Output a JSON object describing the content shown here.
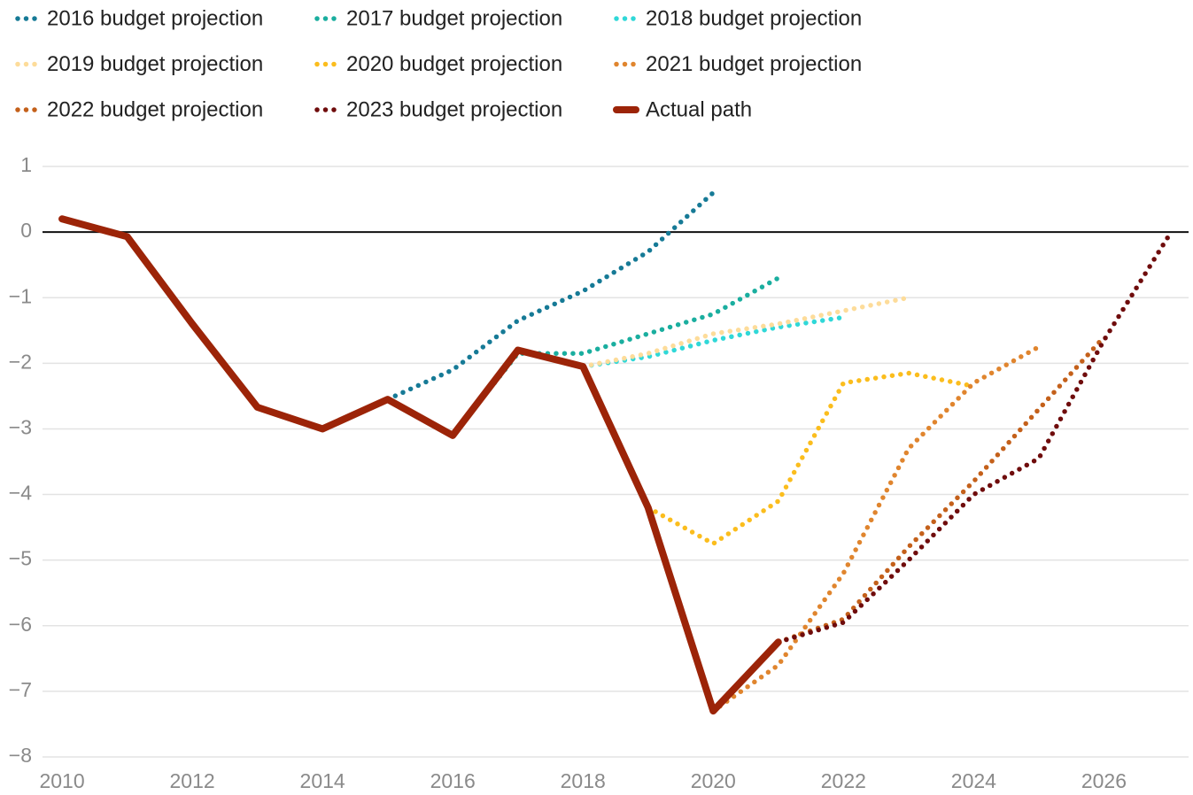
{
  "chart_data": {
    "type": "line",
    "x": [
      2010,
      2011,
      2012,
      2013,
      2014,
      2015,
      2016,
      2017,
      2018,
      2019,
      2020,
      2021,
      2022,
      2023,
      2024,
      2025,
      2026,
      2027
    ],
    "series": [
      {
        "name": "2016 budget projection",
        "color": "#167a96",
        "style": "dotted",
        "values": [
          null,
          null,
          null,
          null,
          null,
          -2.55,
          -2.1,
          -1.35,
          -0.9,
          -0.3,
          0.6,
          null,
          null,
          null,
          null,
          null,
          null,
          null
        ]
      },
      {
        "name": "2017 budget projection",
        "color": "#1aae9f",
        "style": "dotted",
        "values": [
          null,
          null,
          null,
          null,
          null,
          null,
          -3.1,
          -1.85,
          -1.85,
          -1.55,
          -1.25,
          -0.7,
          null,
          null,
          null,
          null,
          null,
          null
        ]
      },
      {
        "name": "2018 budget projection",
        "color": "#30d8d8",
        "style": "dotted",
        "values": [
          null,
          null,
          null,
          null,
          null,
          null,
          null,
          -1.8,
          -2.05,
          -1.9,
          -1.65,
          -1.45,
          -1.3,
          null,
          null,
          null,
          null,
          null
        ]
      },
      {
        "name": "2019 budget projection",
        "color": "#fddc9a",
        "style": "dotted",
        "values": [
          null,
          null,
          null,
          null,
          null,
          null,
          null,
          null,
          -2.05,
          -1.85,
          -1.55,
          -1.4,
          -1.2,
          -1.0,
          null,
          null,
          null,
          null
        ]
      },
      {
        "name": "2020 budget projection",
        "color": "#fbbd1d",
        "style": "dotted",
        "values": [
          null,
          null,
          null,
          null,
          null,
          null,
          null,
          null,
          null,
          -4.2,
          -4.75,
          -4.1,
          -2.3,
          -2.15,
          -2.35,
          null,
          null,
          null
        ]
      },
      {
        "name": "2021 budget projection",
        "color": "#e0852e",
        "style": "dotted",
        "values": [
          null,
          null,
          null,
          null,
          null,
          null,
          null,
          null,
          null,
          null,
          -7.3,
          -6.6,
          -5.2,
          -3.3,
          -2.3,
          -1.75,
          null,
          null
        ]
      },
      {
        "name": "2022 budget projection",
        "color": "#c4601a",
        "style": "dotted",
        "values": [
          null,
          null,
          null,
          null,
          null,
          null,
          null,
          null,
          null,
          null,
          null,
          -6.25,
          -5.9,
          -4.8,
          -3.8,
          -2.7,
          -1.6,
          null
        ]
      },
      {
        "name": "2023 budget projection",
        "color": "#6f0c0c",
        "style": "dotted",
        "values": [
          null,
          null,
          null,
          null,
          null,
          null,
          null,
          null,
          null,
          null,
          null,
          -6.25,
          -5.95,
          -5.0,
          -4.0,
          -3.45,
          -1.65,
          -0.05
        ]
      },
      {
        "name": "Actual path",
        "color": "#9c2408",
        "style": "solid",
        "values": [
          0.2,
          -0.07,
          -1.4,
          -2.67,
          -3.0,
          -2.55,
          -3.1,
          -1.8,
          -2.05,
          -4.2,
          -7.3,
          -6.25,
          null,
          null,
          null,
          null,
          null,
          null
        ]
      }
    ],
    "xlim": [
      2009.7,
      2027.3
    ],
    "xticks": [
      2010,
      2012,
      2014,
      2016,
      2018,
      2020,
      2022,
      2024,
      2026
    ],
    "ylim": [
      -8,
      1
    ],
    "yticks": [
      {
        "value": -8,
        "label": "−8"
      },
      {
        "value": -7,
        "label": "−7"
      },
      {
        "value": -6,
        "label": "−6"
      },
      {
        "value": -5,
        "label": "−5"
      },
      {
        "value": -4,
        "label": "−4"
      },
      {
        "value": -3,
        "label": "−3"
      },
      {
        "value": -2,
        "label": "−2"
      },
      {
        "value": -1,
        "label": "−1"
      },
      0,
      1
    ],
    "grid": true,
    "legend": "top"
  }
}
